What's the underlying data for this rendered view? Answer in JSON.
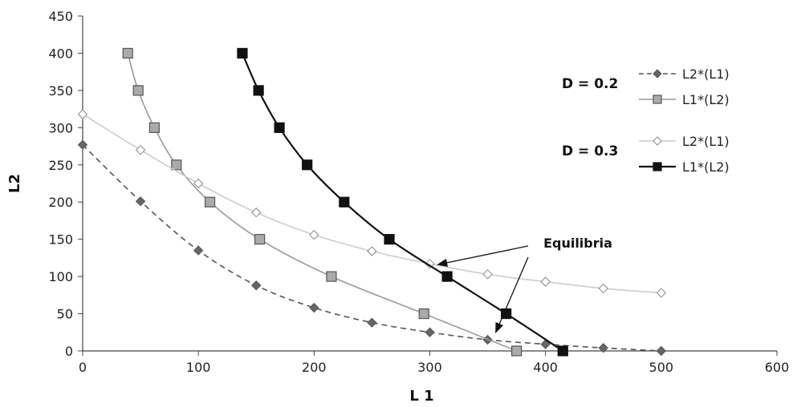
{
  "chart_data": {
    "type": "line",
    "xlabel": "L 1",
    "ylabel": "L2",
    "xlim": [
      0,
      600
    ],
    "ylim": [
      0,
      450
    ],
    "xticks": [
      0,
      100,
      200,
      300,
      400,
      500,
      600
    ],
    "yticks": [
      0,
      50,
      100,
      150,
      200,
      250,
      300,
      350,
      400,
      450
    ],
    "grid": false,
    "legend_placement": "right",
    "legend_groups": [
      {
        "label": "D = 0.2",
        "series_index": [
          0,
          1
        ]
      },
      {
        "label": "D = 0.3",
        "series_index": [
          2,
          3
        ]
      }
    ],
    "series": [
      {
        "name": "L2*(L1)",
        "color": "#555555",
        "line_style": "dashed",
        "marker": "diamond",
        "marker_fill": "#666666",
        "x": [
          0,
          50,
          100,
          150,
          200,
          250,
          300,
          350,
          400,
          450,
          500
        ],
        "y": [
          277,
          201,
          135,
          88,
          58,
          38,
          25,
          15,
          9,
          4,
          0
        ]
      },
      {
        "name": "L1*(L2)",
        "color": "#999999",
        "line_style": "solid",
        "marker": "square",
        "marker_fill": "#aaaaaa",
        "x": [
          39,
          48,
          62,
          81,
          110,
          153,
          215,
          295,
          375
        ],
        "y": [
          400,
          350,
          300,
          250,
          200,
          150,
          100,
          50,
          0
        ]
      },
      {
        "name": "L2*(L1)",
        "color": "#cccccc",
        "line_style": "solid",
        "marker": "diamond",
        "marker_fill": "#ffffff",
        "x": [
          0,
          50,
          100,
          150,
          200,
          250,
          300,
          350,
          400,
          450,
          500
        ],
        "y": [
          318,
          270,
          225,
          186,
          156,
          134,
          117,
          103,
          93,
          84,
          78
        ]
      },
      {
        "name": "L1*(L2)",
        "color": "#111111",
        "line_style": "solid",
        "marker": "square",
        "marker_fill": "#111111",
        "x": [
          138,
          152,
          170,
          194,
          226,
          265,
          315,
          366,
          415
        ],
        "y": [
          400,
          350,
          300,
          250,
          200,
          150,
          100,
          50,
          0
        ]
      }
    ],
    "annotations": [
      {
        "text": "Equilibria",
        "arrows_to": [
          [
            307,
            116
          ],
          [
            357,
            25
          ]
        ]
      }
    ]
  }
}
